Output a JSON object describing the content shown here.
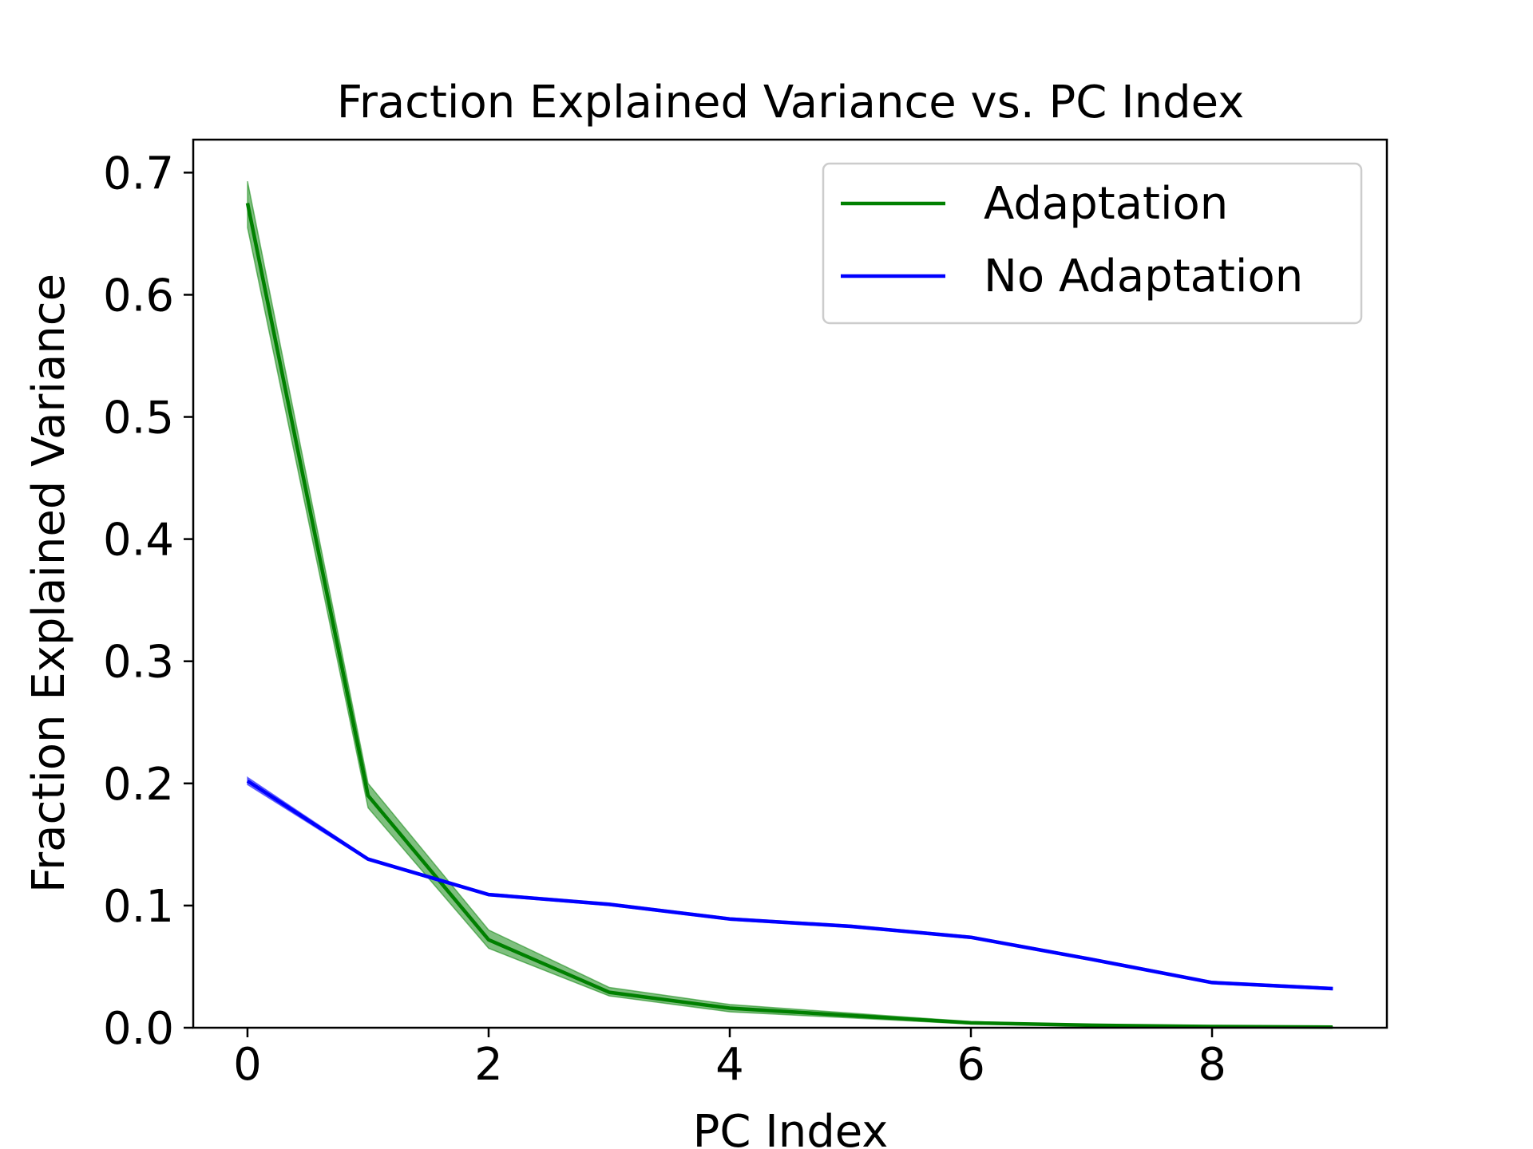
{
  "chart_data": {
    "type": "line",
    "title": "Fraction Explained Variance vs. PC Index",
    "xlabel": "PC Index",
    "ylabel": "Fraction Explained Variance",
    "xlim": [
      -0.45,
      9.45
    ],
    "ylim": [
      0.0,
      0.727
    ],
    "x": [
      0,
      1,
      2,
      3,
      4,
      5,
      6,
      7,
      8,
      9
    ],
    "xticks": [
      0,
      2,
      4,
      6,
      8
    ],
    "xtick_labels": [
      "0",
      "2",
      "4",
      "6",
      "8"
    ],
    "yticks": [
      0.0,
      0.1,
      0.2,
      0.3,
      0.4,
      0.5,
      0.6,
      0.7
    ],
    "ytick_labels": [
      "0.0",
      "0.1",
      "0.2",
      "0.3",
      "0.4",
      "0.5",
      "0.6",
      "0.7"
    ],
    "grid": false,
    "legend_position": "upper right",
    "series": [
      {
        "name": "Adaptation",
        "color": "#008000",
        "values": [
          0.675,
          0.19,
          0.072,
          0.029,
          0.016,
          0.01,
          0.004,
          0.002,
          0.001,
          0.0005
        ],
        "band_lower": [
          0.655,
          0.18,
          0.065,
          0.026,
          0.013,
          0.008,
          0.003,
          0.0015,
          0.0008,
          0.0003
        ],
        "band_upper": [
          0.693,
          0.2,
          0.08,
          0.033,
          0.019,
          0.012,
          0.005,
          0.0025,
          0.0013,
          0.0007
        ]
      },
      {
        "name": "No Adaptation",
        "color": "#0000ff",
        "values": [
          0.202,
          0.138,
          0.109,
          0.101,
          0.089,
          0.083,
          0.074,
          0.056,
          0.037,
          0.032
        ],
        "band_lower": [
          0.199,
          0.137,
          0.108,
          0.1,
          0.088,
          0.082,
          0.073,
          0.055,
          0.036,
          0.031
        ],
        "band_upper": [
          0.205,
          0.139,
          0.11,
          0.102,
          0.09,
          0.084,
          0.075,
          0.057,
          0.038,
          0.033
        ]
      }
    ]
  }
}
